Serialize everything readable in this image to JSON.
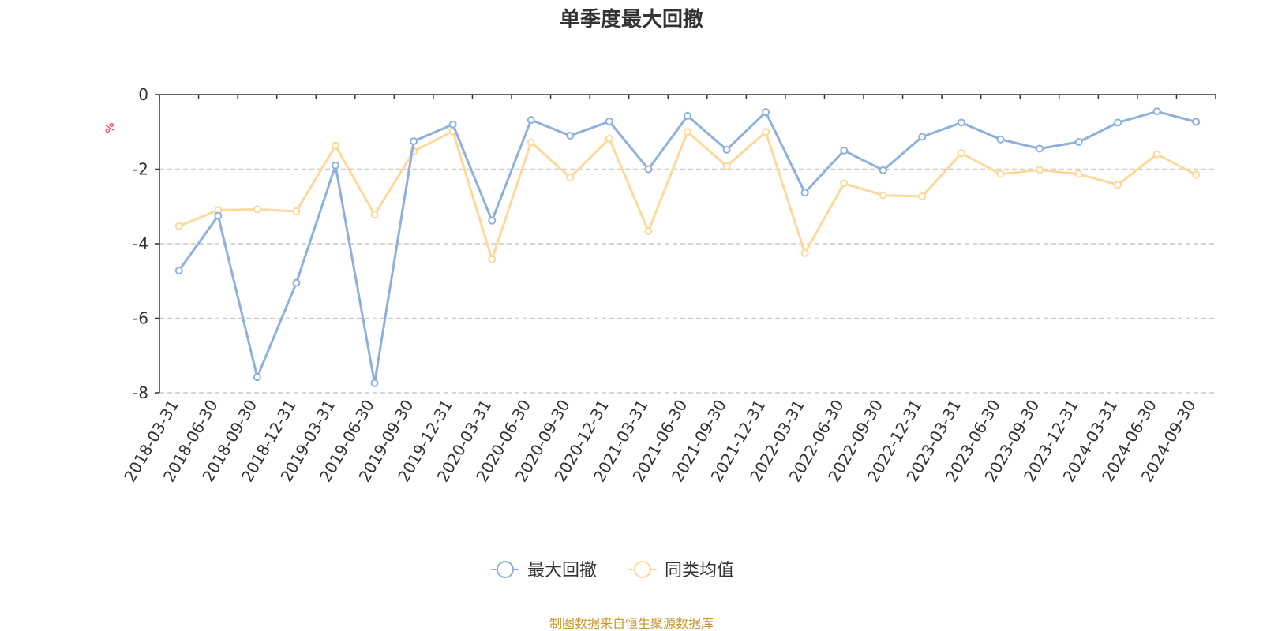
{
  "chart_data": {
    "type": "line",
    "title": "单季度最大回撤",
    "ylabel": "%",
    "ylim": [
      -8,
      0
    ],
    "yticks": [
      0,
      -2,
      -4,
      -6,
      -8
    ],
    "grid": true,
    "legend_position": "bottom-center",
    "categories": [
      "2018-03-31",
      "2018-06-30",
      "2018-09-30",
      "2018-12-31",
      "2019-03-31",
      "2019-06-30",
      "2019-09-30",
      "2019-12-31",
      "2020-03-31",
      "2020-06-30",
      "2020-09-30",
      "2020-12-31",
      "2021-03-31",
      "2021-06-30",
      "2021-09-30",
      "2021-12-31",
      "2022-03-31",
      "2022-06-30",
      "2022-09-30",
      "2022-12-31",
      "2023-03-31",
      "2023-06-30",
      "2023-09-30",
      "2023-12-31",
      "2024-03-31",
      "2024-06-30",
      "2024-09-30"
    ],
    "series": [
      {
        "name": "最大回撤",
        "color": "#8eb0dc",
        "values": [
          -4.72,
          -3.25,
          -7.58,
          -5.05,
          -1.9,
          -7.74,
          -1.25,
          -0.8,
          -3.38,
          -0.68,
          -1.1,
          -0.72,
          -2.0,
          -0.57,
          -1.48,
          -0.47,
          -2.63,
          -1.5,
          -2.03,
          -1.13,
          -0.75,
          -1.2,
          -1.45,
          -1.27,
          -0.75,
          -0.45,
          -0.73
        ]
      },
      {
        "name": "同类均值",
        "color": "#fcd99a",
        "values": [
          -3.53,
          -3.1,
          -3.08,
          -3.13,
          -1.37,
          -3.22,
          -1.52,
          -0.98,
          -4.42,
          -1.28,
          -2.22,
          -1.18,
          -3.66,
          -1.0,
          -1.92,
          -1.0,
          -4.25,
          -2.38,
          -2.7,
          -2.73,
          -1.57,
          -2.13,
          -2.02,
          -2.13,
          -2.42,
          -1.6,
          -2.15
        ]
      }
    ]
  },
  "footer": {
    "source": "制图数据来自恒生聚源数据库"
  }
}
